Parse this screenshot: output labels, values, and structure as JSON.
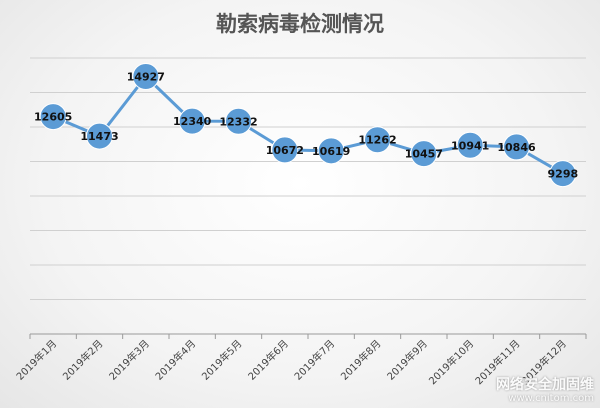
{
  "chart_data": {
    "type": "line",
    "title": "勒索病毒检测情况",
    "xlabel": "",
    "ylabel": "",
    "categories": [
      "2019年1月",
      "2019年2月",
      "2019年3月",
      "2019年4月",
      "2019年5月",
      "2019年6月",
      "2019年7月",
      "2019年8月",
      "2019年9月",
      "2019年10月",
      "2019年11月",
      "2019年12月"
    ],
    "series": [
      {
        "values": [
          12605,
          11473,
          14927,
          12340,
          12332,
          10672,
          10619,
          11262,
          10457,
          10941,
          10846,
          9298
        ]
      }
    ],
    "ylim": [
      0,
      16000
    ],
    "grid": true,
    "data_labels": true,
    "line_color": "#5b9bd5",
    "marker_color": "#5b9bd5"
  },
  "watermark": {
    "name": "网络安全加固维",
    "url": "www.cnitom.com"
  }
}
